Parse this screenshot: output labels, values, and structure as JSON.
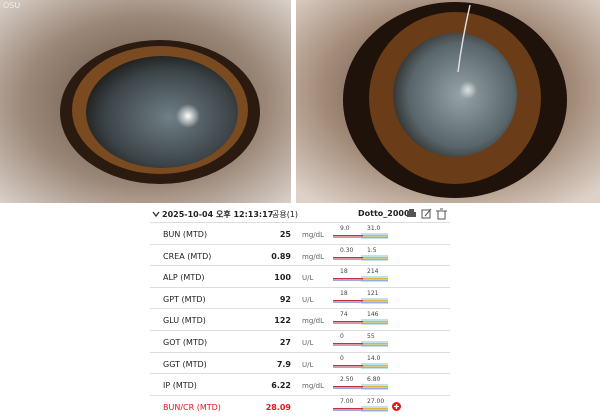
{
  "photo_label": "OSU",
  "header": {
    "date": "2025-10-04 오후 12:13:17",
    "group": "공용(1)",
    "device": "Dotto_2000"
  },
  "rows": [
    {
      "name": "BUN (MTD)",
      "value": "25",
      "unit": "mg/dL",
      "low": "9.0",
      "high": "31.0"
    },
    {
      "name": "CREA (MTD)",
      "value": "0.89",
      "unit": "mg/dL",
      "low": "0.30",
      "high": "1.5"
    },
    {
      "name": "ALP (MTD)",
      "value": "100",
      "unit": "U/L",
      "low": "18",
      "high": "214"
    },
    {
      "name": "GPT (MTD)",
      "value": "92",
      "unit": "U/L",
      "low": "18",
      "high": "121"
    },
    {
      "name": "GLU (MTD)",
      "value": "122",
      "unit": "mg/dL",
      "low": "74",
      "high": "146"
    },
    {
      "name": "GOT (MTD)",
      "value": "27",
      "unit": "U/L",
      "low": "0",
      "high": "55"
    },
    {
      "name": "GGT (MTD)",
      "value": "7.9",
      "unit": "U/L",
      "low": "0",
      "high": "14.0"
    },
    {
      "name": "IP (MTD)",
      "value": "6.22",
      "unit": "mg/dL",
      "low": "2.50",
      "high": "6.80"
    },
    {
      "name": "BUN/CR (MTD)",
      "value": "28.09",
      "low": "7.00",
      "high": "27.00"
    }
  ]
}
